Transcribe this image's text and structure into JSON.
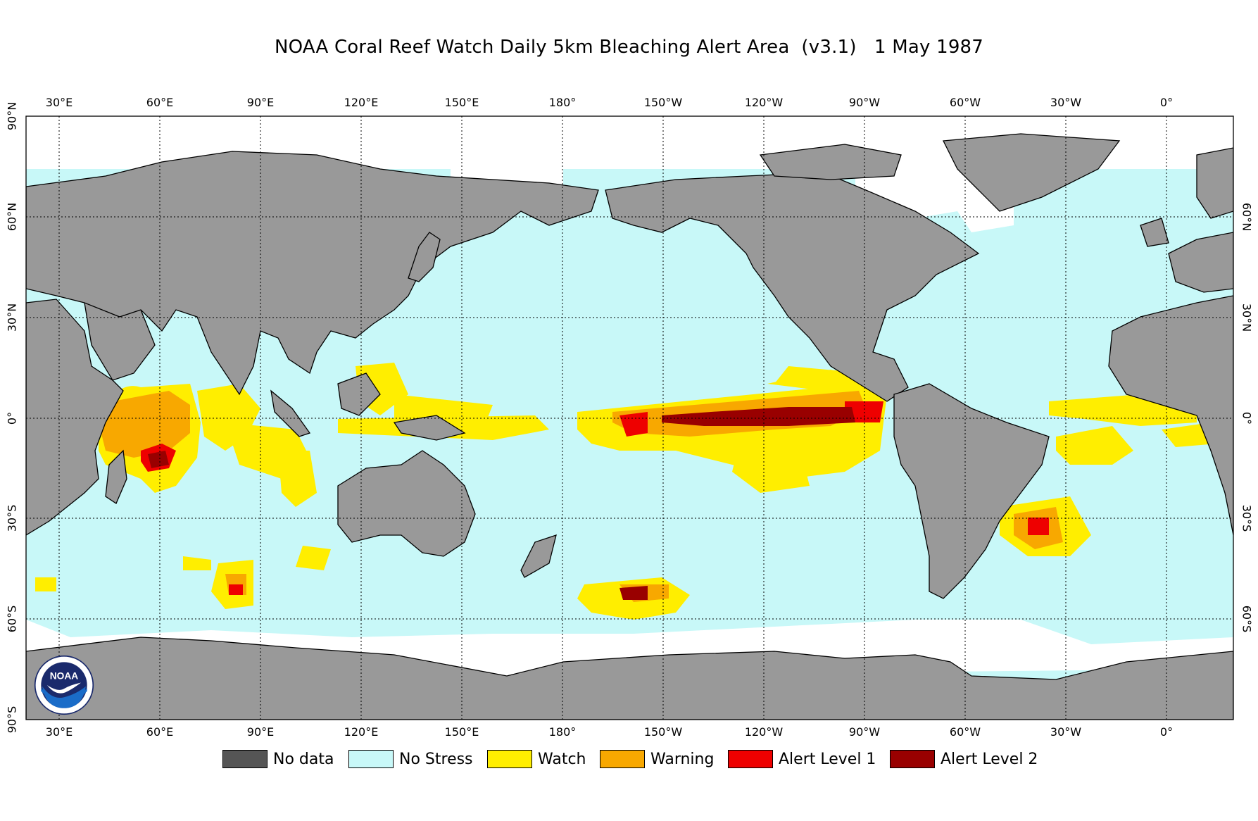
{
  "title": "NOAA Coral Reef Watch Daily 5km Bleaching Alert Area  (v3.1)   1 May 1987",
  "lon_labels": [
    "30°E",
    "60°E",
    "90°E",
    "120°E",
    "150°E",
    "180°",
    "150°W",
    "120°W",
    "90°W",
    "60°W",
    "30°W",
    "0°"
  ],
  "lat_labels_left": [
    "90°N",
    "60°N",
    "30°N",
    "0°",
    "30°S",
    "60°S",
    "90°S"
  ],
  "lat_labels_right": [
    "60°N",
    "30°N",
    "0°",
    "30°S",
    "60°S"
  ],
  "legend": [
    {
      "label": "No data",
      "color": "#555555"
    },
    {
      "label": "No Stress",
      "color": "#c8f8f8"
    },
    {
      "label": "Watch",
      "color": "#ffee00"
    },
    {
      "label": "Warning",
      "color": "#f8a800"
    },
    {
      "label": "Alert Level 1",
      "color": "#ee0000"
    },
    {
      "label": "Alert Level 2",
      "color": "#990000"
    }
  ],
  "colors": {
    "land": "#999999",
    "ocean": "#c8f8f8",
    "ice": "#ffffff",
    "watch": "#ffee00",
    "warning": "#f8a800",
    "alert1": "#ee0000",
    "alert2": "#990000"
  },
  "logo": {
    "icon": "noaa-logo-icon",
    "text": "NOAA"
  }
}
